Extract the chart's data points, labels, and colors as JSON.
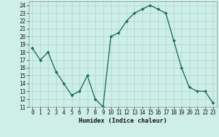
{
  "x": [
    0,
    1,
    2,
    3,
    4,
    5,
    6,
    7,
    8,
    9,
    10,
    11,
    12,
    13,
    14,
    15,
    16,
    17,
    18,
    19,
    20,
    21,
    22,
    23
  ],
  "y": [
    18.5,
    17.0,
    18.0,
    15.5,
    14.0,
    12.5,
    13.0,
    15.0,
    12.0,
    11.0,
    20.0,
    20.5,
    22.0,
    23.0,
    23.5,
    24.0,
    23.5,
    23.0,
    19.5,
    16.0,
    13.5,
    13.0,
    13.0,
    11.5
  ],
  "line_color": "#1a6b5a",
  "marker": "D",
  "marker_size": 2.0,
  "bg_color": "#ceeee8",
  "grid_color": "#aad4cc",
  "xlabel": "Humidex (Indice chaleur)",
  "ylim": [
    11,
    24.5
  ],
  "xlim": [
    -0.5,
    23.5
  ],
  "yticks": [
    11,
    12,
    13,
    14,
    15,
    16,
    17,
    18,
    19,
    20,
    21,
    22,
    23,
    24
  ],
  "xticks": [
    0,
    1,
    2,
    3,
    4,
    5,
    6,
    7,
    8,
    9,
    10,
    11,
    12,
    13,
    14,
    15,
    16,
    17,
    18,
    19,
    20,
    21,
    22,
    23
  ],
  "tick_fontsize": 5.5,
  "xlabel_fontsize": 6.5,
  "linewidth": 1.0
}
